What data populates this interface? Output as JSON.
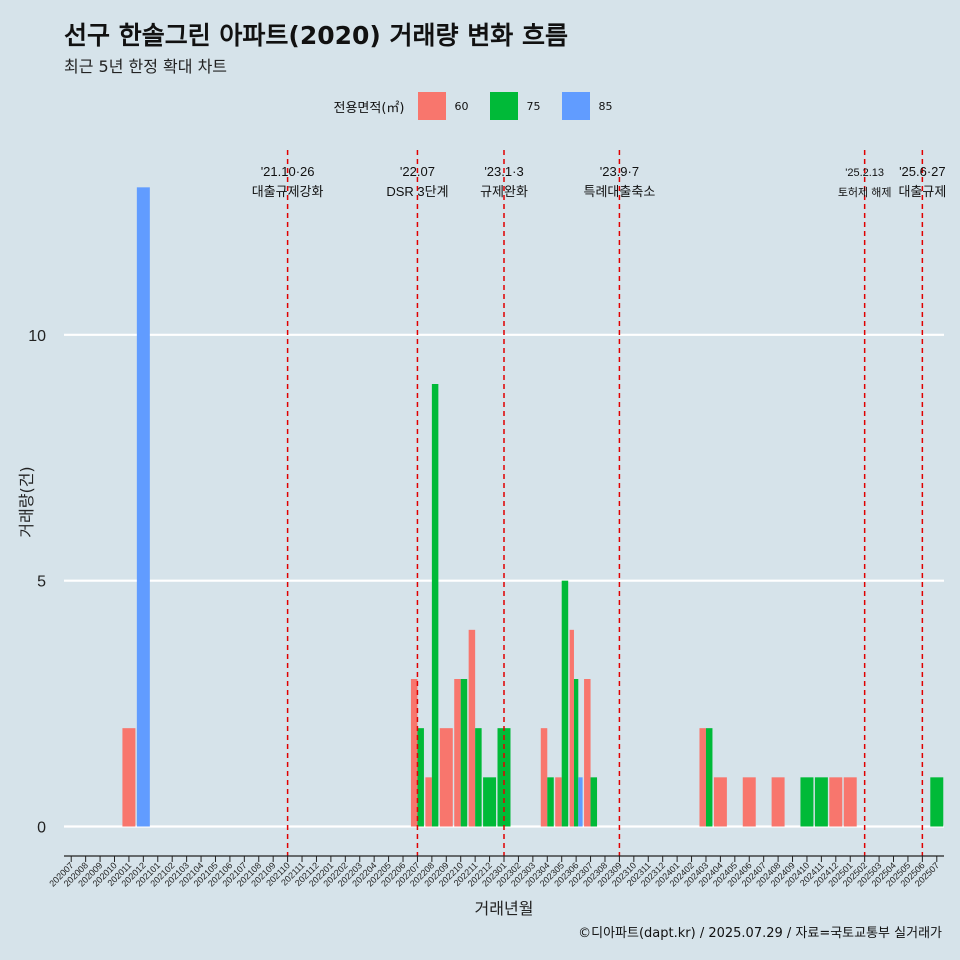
{
  "title": "선구 한솔그린 아파트(2020) 거래량 변화 흐름",
  "subtitle": "최근 5년 한정 확대 차트",
  "caption": "©디아파트(dapt.kr) / 2025.07.29 / 자료=국토교통부 실거래가",
  "legend": {
    "title": "전용면적(㎡)",
    "items": [
      {
        "label": "60",
        "color": "#f8766d"
      },
      {
        "label": "75",
        "color": "#00ba38"
      },
      {
        "label": "85",
        "color": "#619cff"
      }
    ]
  },
  "chart_data": {
    "type": "bar",
    "xlabel": "거래년월",
    "ylabel": "거래량(건)",
    "y_ticks": [
      0,
      5,
      10
    ],
    "ylim": [
      -0.6,
      13.8
    ],
    "grid": true,
    "legend_position": "top",
    "categories": [
      "202007",
      "202008",
      "202009",
      "202010",
      "202011",
      "202012",
      "202101",
      "202102",
      "202103",
      "202104",
      "202105",
      "202106",
      "202107",
      "202108",
      "202109",
      "202110",
      "202111",
      "202112",
      "202201",
      "202202",
      "202203",
      "202204",
      "202205",
      "202206",
      "202207",
      "202208",
      "202209",
      "202210",
      "202211",
      "202212",
      "202301",
      "202302",
      "202303",
      "202304",
      "202305",
      "202306",
      "202307",
      "202308",
      "202309",
      "202310",
      "202311",
      "202312",
      "202401",
      "202402",
      "202403",
      "202404",
      "202405",
      "202406",
      "202407",
      "202408",
      "202409",
      "202410",
      "202411",
      "202412",
      "202501",
      "202502",
      "202503",
      "202504",
      "202505",
      "202506",
      "202507"
    ],
    "series": [
      {
        "name": "60",
        "color": "#f8766d",
        "values": {
          "202011": 2,
          "202207": 3,
          "202208": 1,
          "202209": 2,
          "202210": 3,
          "202211": 4,
          "202304": 2,
          "202305": 1,
          "202306": 4,
          "202307": 3,
          "202403": 2,
          "202404": 1,
          "202406": 1,
          "202408": 1,
          "202412": 1,
          "202501": 1
        }
      },
      {
        "name": "75",
        "color": "#00ba38",
        "values": {
          "202207": 2,
          "202208": 9,
          "202210": 3,
          "202211": 2,
          "202212": 1,
          "202301": 2,
          "202304": 1,
          "202305": 5,
          "202306": 3,
          "202307": 1,
          "202403": 2,
          "202410": 1,
          "202411": 1,
          "202507": 1
        }
      },
      {
        "name": "85",
        "color": "#619cff",
        "values": {
          "202012": 13,
          "202306": 1
        }
      }
    ],
    "events": [
      {
        "month": "202110",
        "date": "'21.10·26",
        "label": "대출규제강화"
      },
      {
        "month": "202207",
        "date": "'22.07",
        "label": "DSR 3단계"
      },
      {
        "month": "202301",
        "date": "'23.1·3",
        "label": "규제완화"
      },
      {
        "month": "202309",
        "date": "'23.9·7",
        "label": "특례대출축소"
      },
      {
        "month": "202502",
        "date": "'25.2.13",
        "label": "토허제 해제"
      },
      {
        "month": "202506",
        "date": "'25.6·27",
        "label": "대출규제"
      }
    ]
  }
}
